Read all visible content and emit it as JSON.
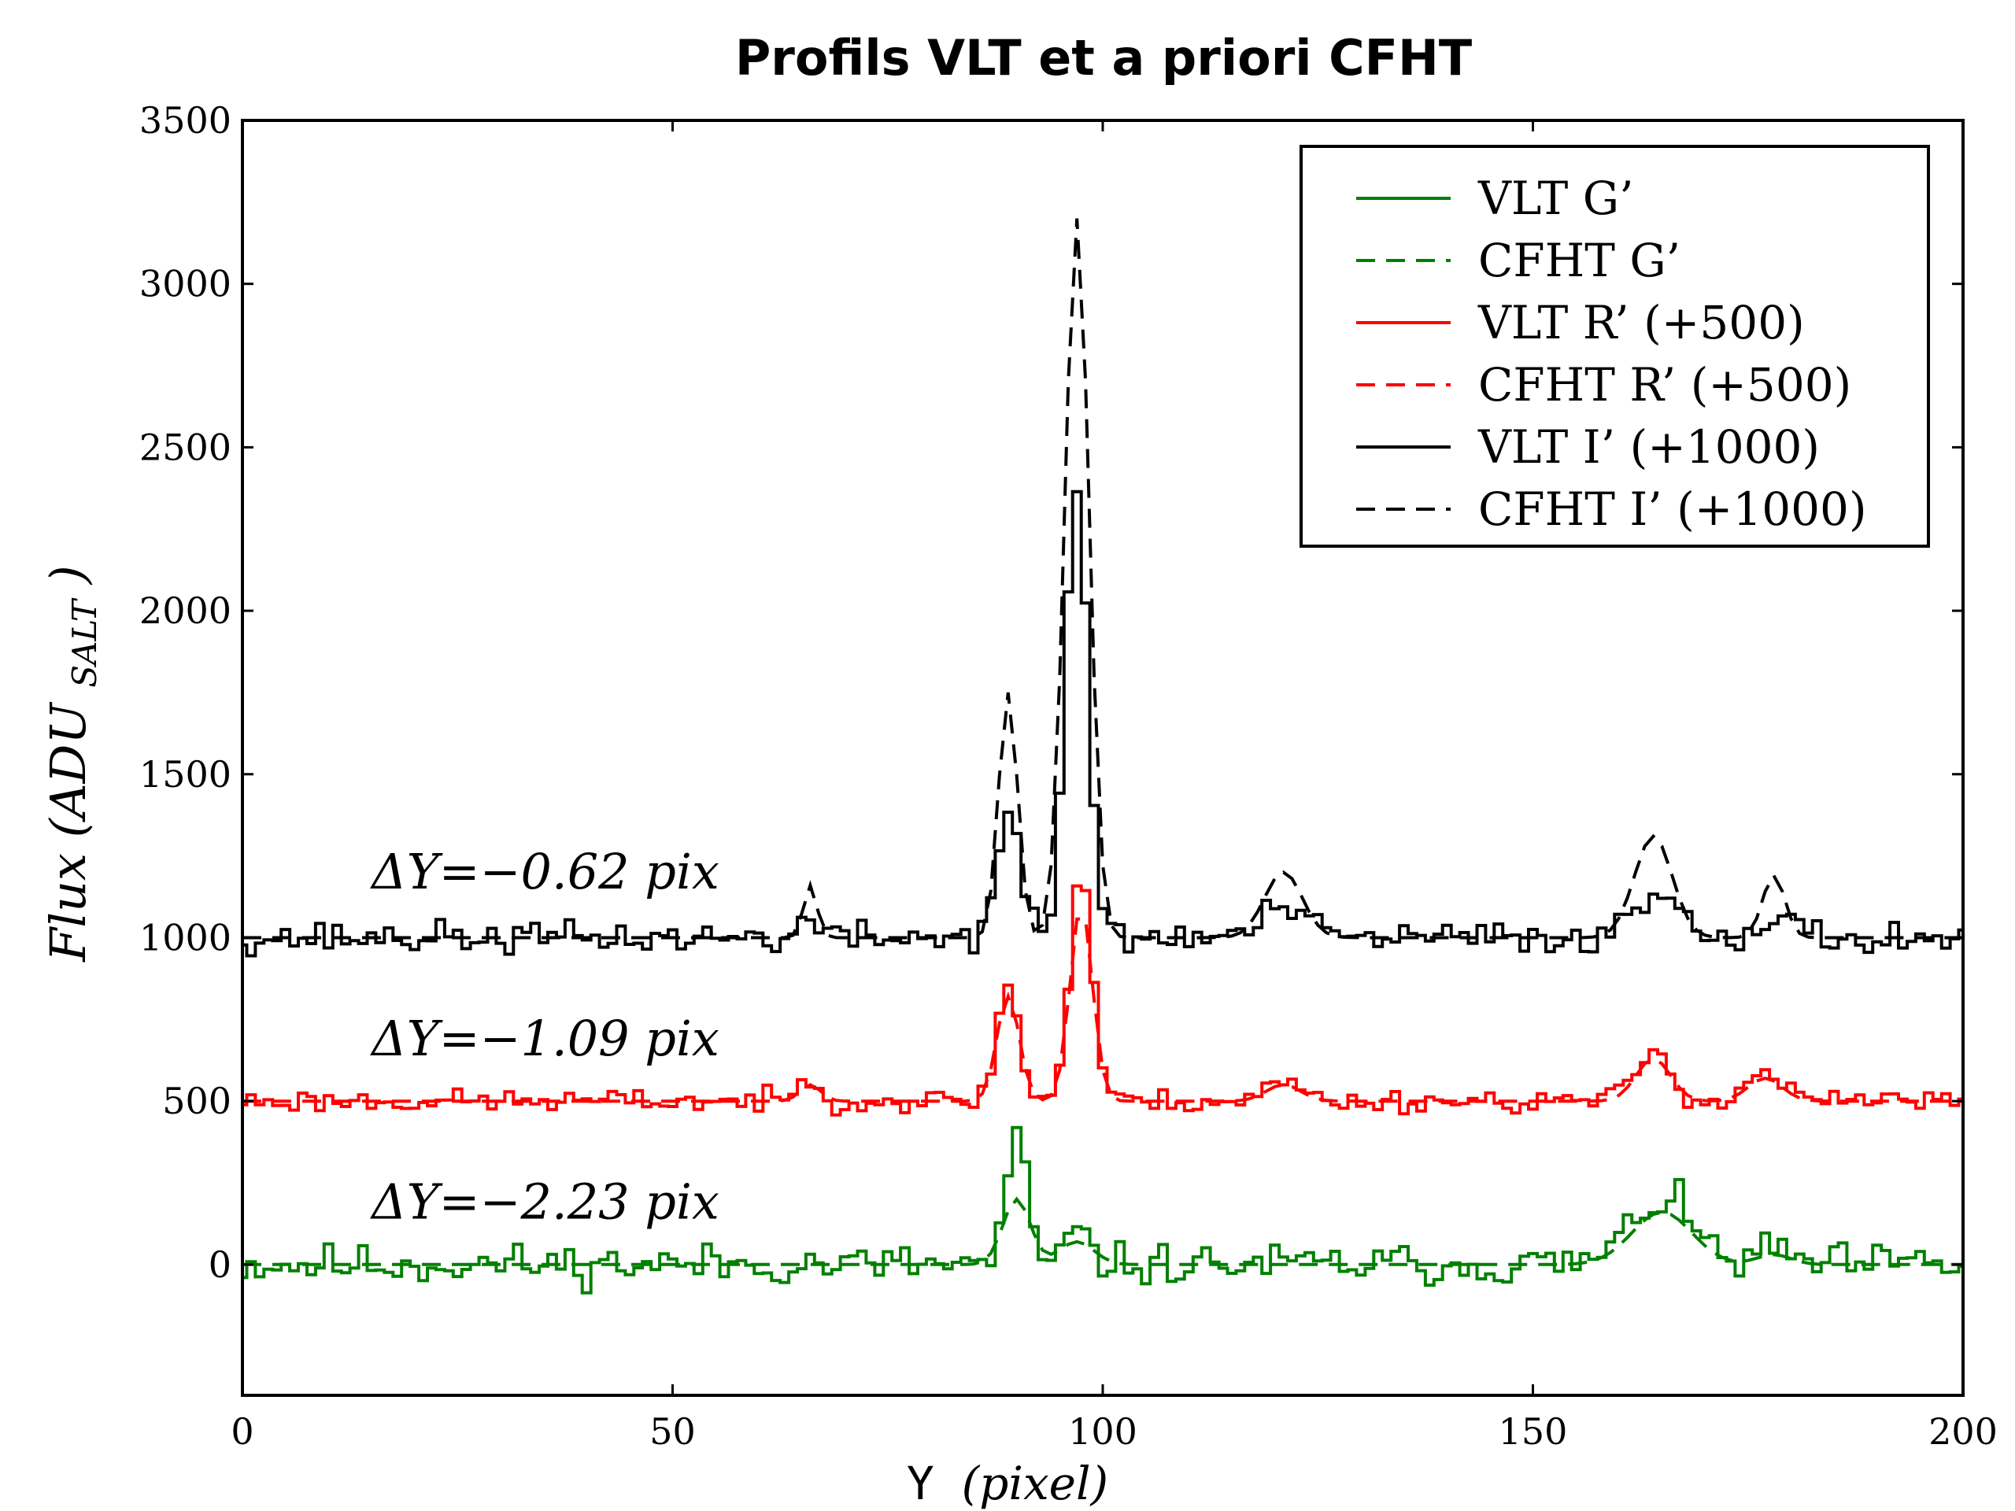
{
  "chart_data": {
    "type": "line",
    "title": "Profils VLT et a priori CFHT",
    "xlabel": "Y",
    "xlabel_unit": "(pixel)",
    "ylabel": "Flux",
    "ylabel_unit": "(ADU",
    "ylabel_sub": "SALT",
    "ylabel_close": ")",
    "xlim": [
      0,
      200
    ],
    "ylim": [
      -400,
      3500
    ],
    "xticks": [
      0,
      50,
      100,
      150,
      200
    ],
    "yticks": [
      0,
      500,
      1000,
      1500,
      2000,
      2500,
      3000,
      3500
    ],
    "grid": false,
    "legend_position": "top-right",
    "colors": {
      "green": "#008000",
      "red": "#ff0000",
      "black": "#000000"
    },
    "annotations": [
      {
        "delta": "ΔY=−0.62",
        "unit": "pix",
        "y": 1150
      },
      {
        "delta": "ΔY=−1.09",
        "unit": "pix",
        "y": 640
      },
      {
        "delta": "ΔY=−2.23",
        "unit": "pix",
        "y": 140
      }
    ],
    "series": [
      {
        "name": "VLT G’",
        "color": "#008000",
        "style": "step",
        "offset": 0,
        "peaks": [
          [
            90,
            380,
            1.2
          ],
          [
            97,
            90,
            1.5
          ],
          [
            165,
            200,
            3.5
          ],
          [
            178,
            40,
            2
          ]
        ],
        "noise": 45,
        "seed": 11
      },
      {
        "name": "CFHT G’",
        "color": "#008000",
        "style": "dash",
        "offset": 0,
        "peaks": [
          [
            90,
            200,
            1.6
          ],
          [
            97,
            70,
            2.0
          ],
          [
            165,
            160,
            3.5
          ],
          [
            178,
            30,
            2
          ]
        ],
        "noise": 0,
        "seed": 0
      },
      {
        "name": "VLT R’  (+500)",
        "color": "#ff0000",
        "style": "step",
        "offset": 500,
        "peaks": [
          [
            66,
            70,
            1.2
          ],
          [
            89,
            350,
            1.3
          ],
          [
            97.5,
            700,
            1.3
          ],
          [
            121,
            60,
            2
          ],
          [
            164,
            150,
            2
          ],
          [
            177,
            90,
            2
          ]
        ],
        "noise": 25,
        "seed": 23
      },
      {
        "name": "CFHT R’ (+500)",
        "color": "#ff0000",
        "style": "dash",
        "offset": 500,
        "peaks": [
          [
            66,
            50,
            1.2
          ],
          [
            89,
            320,
            1.3
          ],
          [
            97.5,
            600,
            1.3
          ],
          [
            121,
            50,
            2
          ],
          [
            164,
            130,
            2
          ],
          [
            177,
            70,
            2
          ]
        ],
        "noise": 0,
        "seed": 0
      },
      {
        "name": "VLT I’  (+1000)",
        "color": "#000000",
        "style": "step",
        "offset": 1000,
        "peaks": [
          [
            66,
            50,
            1.2
          ],
          [
            89,
            380,
            1.4
          ],
          [
            97,
            1380,
            1.3
          ],
          [
            121,
            90,
            2.5
          ],
          [
            165,
            130,
            3
          ],
          [
            178,
            60,
            2
          ]
        ],
        "noise": 35,
        "seed": 37
      },
      {
        "name": "CFHT I’ (+1000)",
        "color": "#000000",
        "style": "dash",
        "offset": 1000,
        "peaks": [
          [
            66,
            160,
            0.8
          ],
          [
            89,
            750,
            1.1
          ],
          [
            97,
            2200,
            1.4
          ],
          [
            121,
            200,
            2.2
          ],
          [
            164,
            310,
            2.2
          ],
          [
            178,
            190,
            1.3
          ]
        ],
        "noise": 0,
        "seed": 0
      }
    ]
  }
}
